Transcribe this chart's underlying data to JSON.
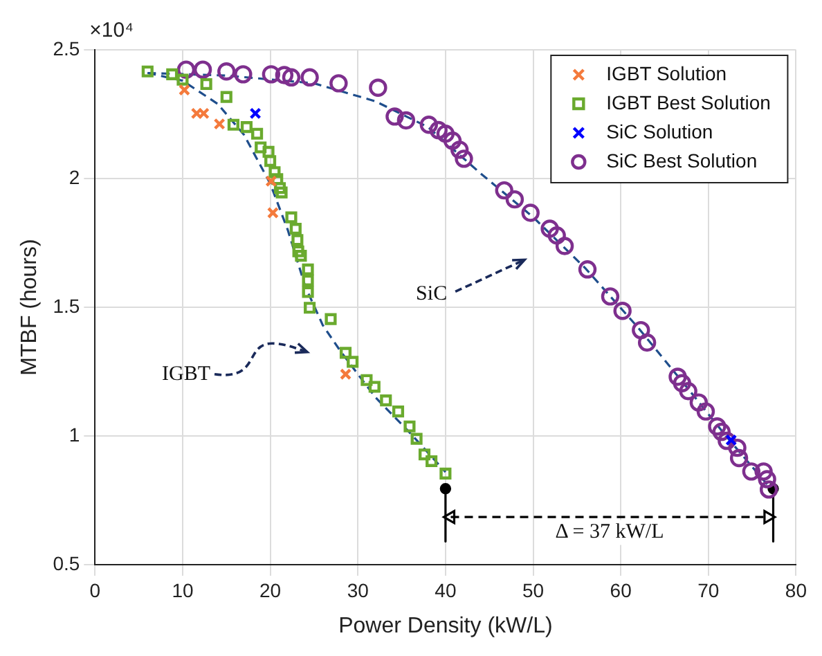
{
  "chart_data": {
    "type": "scatter",
    "xlabel": "Power Density (kW/L)",
    "ylabel": "MTBF (hours)",
    "xlim": [
      0,
      80
    ],
    "xticks": [
      0,
      10,
      20,
      30,
      40,
      50,
      60,
      70,
      80
    ],
    "ylim": [
      0.5,
      2.5
    ],
    "yticks": [
      0.5,
      1,
      1.5,
      2,
      2.5
    ],
    "grid": true,
    "legend": "top right",
    "annotations": [
      "×10⁴",
      "IGBT",
      "SiC",
      "Δ = 37 kW/L"
    ],
    "series": [
      {
        "name": "IGBT Solution",
        "marker": "cross",
        "color": "#f47a3c",
        "x": [
          10.2,
          11.6,
          12.4,
          14.2,
          20.3,
          20.1,
          28.6
        ],
        "values": [
          2.344,
          2.253,
          2.253,
          2.212,
          1.867,
          1.99,
          1.24
        ]
      },
      {
        "name": "IGBT Best Solution",
        "marker": "square",
        "color": "#6aaa2e",
        "x": [
          6.0,
          8.8,
          10.0,
          12.7,
          15.0,
          15.8,
          17.3,
          18.5,
          18.9,
          19.8,
          20.0,
          20.5,
          20.8,
          21.1,
          21.3,
          22.4,
          22.9,
          23.1,
          23.2,
          23.5,
          24.3,
          24.3,
          24.3,
          24.5,
          26.9,
          28.6,
          29.4,
          31.0,
          31.9,
          33.2,
          34.6,
          35.9,
          36.7,
          37.6,
          38.4,
          40.0
        ],
        "values": [
          2.416,
          2.405,
          2.384,
          2.367,
          2.317,
          2.209,
          2.2,
          2.174,
          2.121,
          2.104,
          2.068,
          2.025,
          1.998,
          1.963,
          1.946,
          1.849,
          1.805,
          1.761,
          1.717,
          1.7,
          1.647,
          1.604,
          1.559,
          1.498,
          1.454,
          1.323,
          1.288,
          1.217,
          1.191,
          1.138,
          1.095,
          1.037,
          0.989,
          0.928,
          0.902,
          0.854
        ]
      },
      {
        "name": "SiC Solution",
        "marker": "cross",
        "color": "#0000ff",
        "x": [
          18.3,
          72.6
        ],
        "values": [
          2.253,
          0.984
        ]
      },
      {
        "name": "SiC Best Solution",
        "marker": "circle",
        "color": "#7e2f8e",
        "x": [
          10.4,
          12.3,
          15.0,
          16.9,
          20.1,
          21.6,
          22.4,
          24.5,
          27.8,
          32.3,
          34.2,
          35.5,
          38.1,
          39.2,
          40.0,
          40.8,
          41.6,
          42.1,
          46.7,
          47.9,
          49.7,
          51.9,
          52.7,
          53.6,
          56.2,
          58.8,
          60.2,
          62.3,
          63.0,
          66.5,
          67.0,
          67.7,
          68.9,
          69.7,
          71.0,
          71.5,
          72.1,
          73.3,
          73.5,
          74.9,
          76.3,
          76.7,
          76.9
        ],
        "values": [
          2.423,
          2.423,
          2.416,
          2.405,
          2.405,
          2.402,
          2.393,
          2.393,
          2.37,
          2.353,
          2.241,
          2.226,
          2.209,
          2.188,
          2.174,
          2.147,
          2.112,
          2.077,
          1.954,
          1.919,
          1.867,
          1.805,
          1.779,
          1.738,
          1.647,
          1.542,
          1.486,
          1.411,
          1.363,
          1.23,
          1.205,
          1.174,
          1.13,
          1.095,
          1.037,
          1.016,
          0.981,
          0.954,
          0.914,
          0.862,
          0.862,
          0.832,
          0.792
        ]
      },
      {
        "type": "line",
        "marker": "none",
        "line_style": "dashed",
        "color": "#1f4e8c",
        "x": [
          6,
          10,
          14,
          17,
          20,
          22,
          24,
          26,
          28,
          32,
          36,
          40
        ],
        "values": [
          2.41,
          2.38,
          2.29,
          2.17,
          1.98,
          1.8,
          1.58,
          1.43,
          1.33,
          1.15,
          1.01,
          0.86
        ]
      },
      {
        "type": "line",
        "marker": "none",
        "line_style": "dashed",
        "color": "#1f4e8c",
        "x": [
          6,
          15,
          25,
          32,
          38,
          44,
          50,
          56,
          62,
          68,
          72,
          77
        ],
        "values": [
          2.41,
          2.4,
          2.37,
          2.3,
          2.2,
          2.02,
          1.85,
          1.65,
          1.42,
          1.17,
          1.0,
          0.8
        ]
      },
      {
        "type": "line",
        "marker": "none",
        "line_style": "solid",
        "color": "#000000",
        "x": [
          40,
          40
        ],
        "values": [
          0.795,
          0.59
        ]
      },
      {
        "type": "line",
        "marker": "none",
        "line_style": "solid",
        "color": "#000000",
        "x": [
          77.4,
          77.4
        ],
        "values": [
          0.795,
          0.59
        ]
      },
      {
        "marker": "circle",
        "color": "#000000",
        "x": [
          40,
          77.4
        ],
        "values": [
          0.795,
          0.795
        ]
      },
      {
        "type": "line",
        "marker": "triangle",
        "line_style": "dashed",
        "color": "#000000",
        "x": [
          40.6,
          76.8
        ],
        "values": [
          0.685,
          0.685
        ]
      }
    ]
  }
}
